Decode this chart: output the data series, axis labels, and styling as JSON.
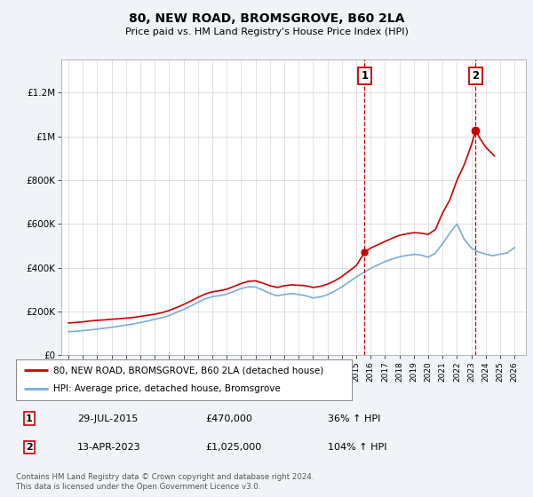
{
  "title": "80, NEW ROAD, BROMSGROVE, B60 2LA",
  "subtitle": "Price paid vs. HM Land Registry's House Price Index (HPI)",
  "legend_line1": "80, NEW ROAD, BROMSGROVE, B60 2LA (detached house)",
  "legend_line2": "HPI: Average price, detached house, Bromsgrove",
  "footnote": "Contains HM Land Registry data © Crown copyright and database right 2024.\nThis data is licensed under the Open Government Licence v3.0.",
  "sale1_date": "29-JUL-2015",
  "sale1_price": "£470,000",
  "sale1_hpi": "36% ↑ HPI",
  "sale2_date": "13-APR-2023",
  "sale2_price": "£1,025,000",
  "sale2_hpi": "104% ↑ HPI",
  "red_color": "#cc0000",
  "blue_color": "#7aaed6",
  "background_color": "#f0f4f8",
  "plot_bg_color": "#ffffff",
  "ylim": [
    0,
    1350000
  ],
  "xlim_start": 1994.5,
  "xlim_end": 2026.8,
  "sale1_x": 2015.58,
  "sale1_y": 470000,
  "sale2_x": 2023.29,
  "sale2_y": 1025000,
  "red_x": [
    1995.0,
    1995.5,
    1996.0,
    1996.5,
    1997.0,
    1997.5,
    1998.0,
    1998.5,
    1999.0,
    1999.5,
    2000.0,
    2000.5,
    2001.0,
    2001.5,
    2002.0,
    2002.5,
    2003.0,
    2003.5,
    2004.0,
    2004.5,
    2005.0,
    2005.5,
    2006.0,
    2006.5,
    2007.0,
    2007.5,
    2008.0,
    2008.5,
    2009.0,
    2009.5,
    2010.0,
    2010.5,
    2011.0,
    2011.5,
    2012.0,
    2012.5,
    2013.0,
    2013.5,
    2014.0,
    2014.5,
    2015.0,
    2015.58,
    2016.0,
    2016.5,
    2017.0,
    2017.5,
    2018.0,
    2018.5,
    2019.0,
    2019.5,
    2020.0,
    2020.5,
    2021.0,
    2021.5,
    2022.0,
    2022.5,
    2023.0,
    2023.29,
    2023.6,
    2024.0,
    2024.3,
    2024.6
  ],
  "red_y": [
    148000,
    150000,
    153000,
    157000,
    160000,
    162000,
    165000,
    167000,
    170000,
    173000,
    178000,
    183000,
    188000,
    195000,
    205000,
    218000,
    232000,
    248000,
    265000,
    280000,
    290000,
    295000,
    302000,
    315000,
    328000,
    338000,
    340000,
    330000,
    318000,
    310000,
    318000,
    322000,
    320000,
    318000,
    310000,
    315000,
    325000,
    340000,
    360000,
    385000,
    410000,
    470000,
    490000,
    505000,
    520000,
    535000,
    548000,
    555000,
    560000,
    558000,
    552000,
    575000,
    650000,
    710000,
    800000,
    870000,
    960000,
    1025000,
    990000,
    950000,
    930000,
    910000
  ],
  "blue_x": [
    1995.0,
    1995.5,
    1996.0,
    1996.5,
    1997.0,
    1997.5,
    1998.0,
    1998.5,
    1999.0,
    1999.5,
    2000.0,
    2000.5,
    2001.0,
    2001.5,
    2002.0,
    2002.5,
    2003.0,
    2003.5,
    2004.0,
    2004.5,
    2005.0,
    2005.5,
    2006.0,
    2006.5,
    2007.0,
    2007.5,
    2008.0,
    2008.5,
    2009.0,
    2009.5,
    2010.0,
    2010.5,
    2011.0,
    2011.5,
    2012.0,
    2012.5,
    2013.0,
    2013.5,
    2014.0,
    2014.5,
    2015.0,
    2015.5,
    2016.0,
    2016.5,
    2017.0,
    2017.5,
    2018.0,
    2018.5,
    2019.0,
    2019.5,
    2020.0,
    2020.5,
    2021.0,
    2021.5,
    2022.0,
    2022.5,
    2023.0,
    2023.5,
    2024.0,
    2024.5,
    2025.0,
    2025.5,
    2026.0
  ],
  "blue_y": [
    108000,
    110000,
    113000,
    116000,
    120000,
    124000,
    128000,
    133000,
    138000,
    143000,
    150000,
    157000,
    165000,
    172000,
    182000,
    196000,
    210000,
    225000,
    242000,
    258000,
    268000,
    273000,
    280000,
    292000,
    305000,
    313000,
    312000,
    298000,
    283000,
    272000,
    278000,
    282000,
    278000,
    272000,
    262000,
    267000,
    277000,
    293000,
    313000,
    335000,
    358000,
    378000,
    397000,
    413000,
    428000,
    440000,
    450000,
    456000,
    461000,
    458000,
    448000,
    467000,
    510000,
    558000,
    600000,
    530000,
    490000,
    472000,
    462000,
    455000,
    462000,
    468000,
    492000
  ]
}
